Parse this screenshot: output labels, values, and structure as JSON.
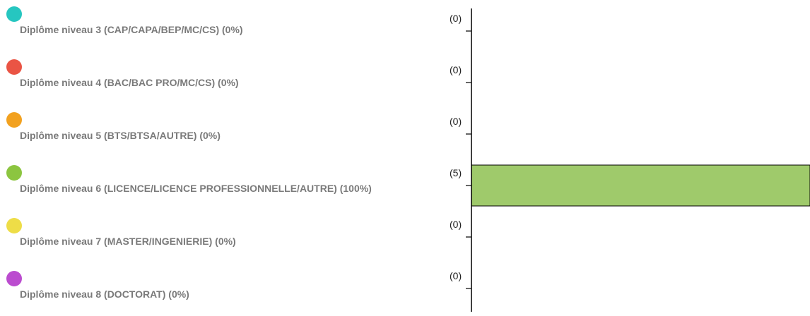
{
  "legend": {
    "items": [
      {
        "label": "Diplôme niveau 3 (CAP/CAPA/BEP/MC/CS) (0%)",
        "color": "#26c6c0"
      },
      {
        "label": "Diplôme niveau 4 (BAC/BAC PRO/MC/CS) (0%)",
        "color": "#ea5444"
      },
      {
        "label": "Diplôme niveau 5 (BTS/BTSA/AUTRE) (0%)",
        "color": "#f2a11f"
      },
      {
        "label": "Diplôme niveau 6 (LICENCE/LICENCE PROFESSIONNELLE/AUTRE) (100%)",
        "color": "#8cc540"
      },
      {
        "label": "Diplôme niveau 7 (MASTER/INGENIERIE) (0%)",
        "color": "#eedd47"
      },
      {
        "label": "Diplôme niveau 8 (DOCTORAT) (0%)",
        "color": "#bb4ccf"
      }
    ]
  },
  "chart_data": {
    "type": "bar",
    "orientation": "horizontal",
    "categories": [
      "Diplôme niveau 3 (CAP/CAPA/BEP/MC/CS)",
      "Diplôme niveau 4 (BAC/BAC PRO/MC/CS)",
      "Diplôme niveau 5 (BTS/BTSA/AUTRE)",
      "Diplôme niveau 6 (LICENCE/LICENCE PROFESSIONNELLE/AUTRE)",
      "Diplôme niveau 7 (MASTER/INGENIERIE)",
      "Diplôme niveau 8 (DOCTORAT)"
    ],
    "values": [
      0,
      0,
      0,
      5,
      0,
      0
    ],
    "tick_labels": [
      "(0)",
      "(0)",
      "(0)",
      "(5)",
      "(0)",
      "(0)"
    ],
    "bar_colors": [
      "#26c6c0",
      "#ea5444",
      "#f2a11f",
      "#9fca6b",
      "#eedd47",
      "#bb4ccf"
    ],
    "xlim": [
      0,
      5
    ],
    "title": "",
    "xlabel": "",
    "ylabel": "",
    "grid": false,
    "legend_position": "left"
  }
}
